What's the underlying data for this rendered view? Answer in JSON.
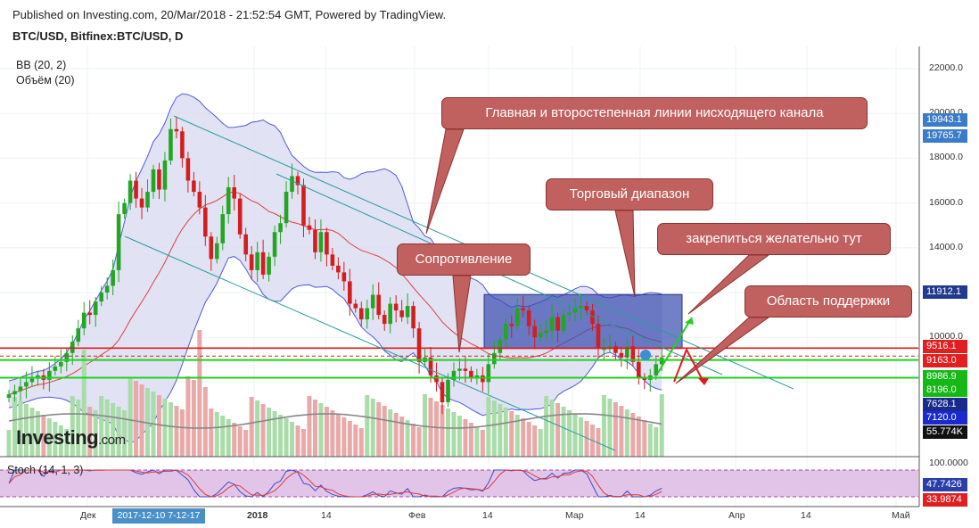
{
  "header": {
    "published": "Published on Investing.com, 20/Mar/2018 - 21:52:54 GMT, Powered by TradingView.",
    "symbol": "BTC/USD, Bitfinex:BTC/USD, D"
  },
  "indicators": {
    "bb": "BB (20, 2)",
    "volume": "Объём (20)",
    "stoch": "Stoch (14, 1, 3)"
  },
  "logo": {
    "main": "Investing",
    "suffix": ".com"
  },
  "callouts": {
    "channel": "Главная и второстепенная линии нисходящего канала",
    "range": "Торговый диапазон",
    "fix": "закрепиться желательно тут",
    "resistance": "Сопротивление",
    "support": "Область поддержки"
  },
  "axis": {
    "price_ticks": [
      "22000.0",
      "20000.0",
      "18000.0",
      "16000.0",
      "14000.0",
      "12000.0",
      "10000.0"
    ],
    "stoch_ticks": [
      "100.0000"
    ],
    "x_ticks": [
      "Дек",
      "2018",
      "14",
      "Фев",
      "14",
      "Мар",
      "14",
      "Апр",
      "14",
      "Май"
    ],
    "crosshair_x": "2017-12-10 7-12-17"
  },
  "price_labels": [
    {
      "text": "19943.1",
      "color": "#3a7cc8"
    },
    {
      "text": "19765.7",
      "color": "#3a7cc8"
    },
    {
      "text": "11912.1",
      "color": "#1f3a8f"
    },
    {
      "text": "9516.1",
      "color": "#e02020"
    },
    {
      "text": "9163.0",
      "color": "#e02020"
    },
    {
      "text": "8986.9",
      "color": "#16b816"
    },
    {
      "text": "8196.0",
      "color": "#16b816"
    },
    {
      "text": "7628.1",
      "color": "#1a2a8a"
    },
    {
      "text": "7120.0",
      "color": "#1a2ad0"
    },
    {
      "text": "55.774K",
      "color": "#111111"
    },
    {
      "text": "47.7426",
      "color": "#2a3fa8"
    },
    {
      "text": "33.9874",
      "color": "#e02020"
    }
  ],
  "chart_data": {
    "type": "candlestick",
    "xlabel": "",
    "ylabel": "",
    "ylim": [
      6000,
      22700
    ],
    "levels": {
      "resistance_red": [
        9516.1,
        9163.0
      ],
      "support_green": [
        8986.9,
        8196.0
      ],
      "range_box": [
        9500,
        11912.1
      ]
    },
    "closes": [
      7450,
      7600,
      7800,
      8000,
      8150,
      8300,
      8100,
      8500,
      8700,
      8900,
      9300,
      9800,
      10400,
      11100,
      11000,
      11600,
      12000,
      12300,
      13000,
      15500,
      16000,
      17000,
      16200,
      15800,
      16500,
      17500,
      16600,
      17900,
      19300,
      19200,
      18000,
      17000,
      16500,
      15800,
      14500,
      13500,
      14200,
      15500,
      16700,
      16200,
      14600,
      13700,
      13000,
      13800,
      12800,
      13600,
      14700,
      15100,
      16500,
      17200,
      16800,
      15000,
      14800,
      13800,
      14700,
      13700,
      13200,
      12900,
      12500,
      11500,
      11300,
      10800,
      11300,
      11900,
      11000,
      10600,
      11500,
      11200,
      10900,
      11400,
      10400,
      8900,
      9100,
      8300,
      8000,
      7100,
      8100,
      8500,
      8600,
      8500,
      8200,
      8300,
      8000,
      8800,
      9300,
      9900,
      10600,
      10500,
      11300,
      11200,
      10500,
      10000,
      10200,
      10300,
      10900,
      10300,
      11000,
      11100,
      11300,
      11400,
      11200,
      10600,
      9500,
      9500,
      9600,
      9300,
      9100,
      9600,
      8900,
      8200,
      8100,
      8300,
      8800,
      9100
    ]
  }
}
